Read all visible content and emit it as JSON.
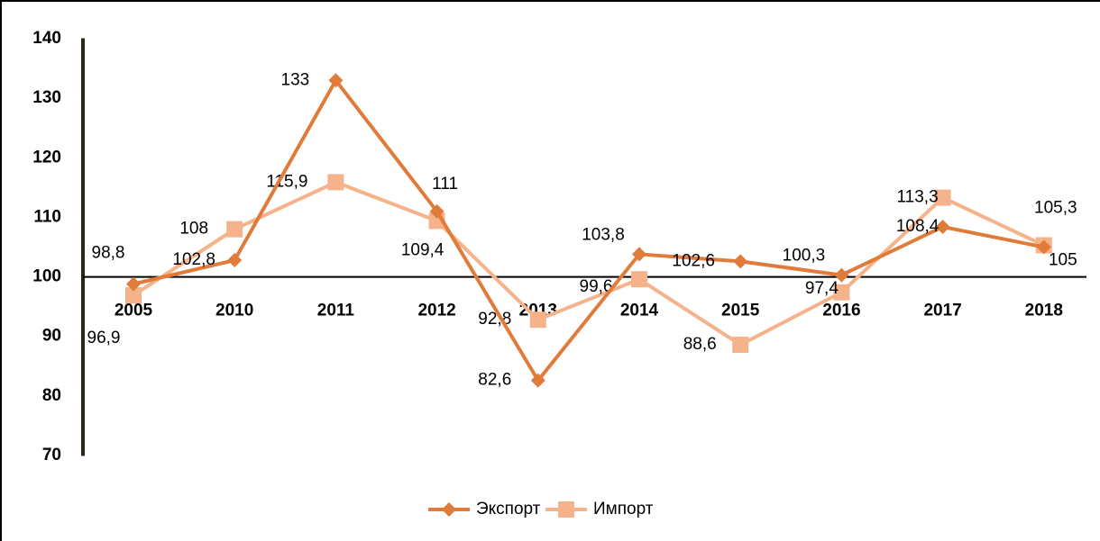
{
  "chart_data": {
    "type": "line",
    "categories": [
      "2005",
      "2010",
      "2011",
      "2012",
      "2013",
      "2014",
      "2015",
      "2016",
      "2017",
      "2018"
    ],
    "series": [
      {
        "name": "Экспорт",
        "color": "#e07b39",
        "marker": "diamond",
        "values": [
          98.8,
          102.8,
          133,
          111,
          82.6,
          103.8,
          102.6,
          100.3,
          108.4,
          105
        ],
        "value_labels": [
          "98,8",
          "102,8",
          "133",
          "111",
          "82,6",
          "103,8",
          "102,6",
          "100,3",
          "108,4",
          "105"
        ]
      },
      {
        "name": "Импорт",
        "color": "#f5b28b",
        "marker": "square",
        "values": [
          96.9,
          108,
          115.9,
          109.4,
          92.8,
          99.6,
          88.6,
          97.4,
          113.3,
          105.3
        ],
        "value_labels": [
          "96,9",
          "108",
          "115,9",
          "109,4",
          "92,8",
          "99,6",
          "88,6",
          "97,4",
          "113,3",
          "105,3"
        ]
      }
    ],
    "ylim": [
      70,
      140
    ],
    "yticks": [
      70,
      80,
      90,
      100,
      110,
      120,
      130,
      140
    ],
    "x_axis_crosses": 100,
    "grid": false,
    "legend": "bottom"
  }
}
